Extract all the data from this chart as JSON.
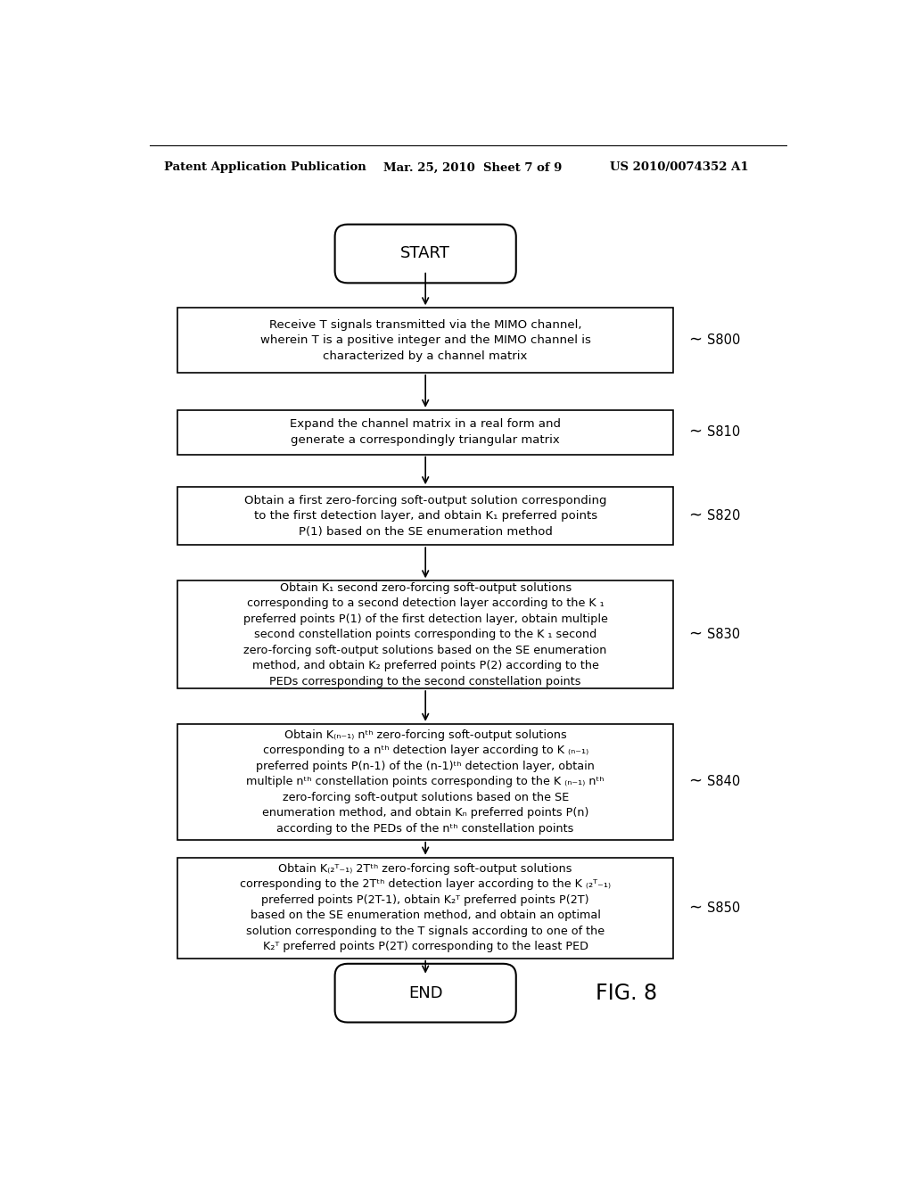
{
  "background_color": "#ffffff",
  "header_left": "Patent Application Publication",
  "header_mid": "Mar. 25, 2010  Sheet 7 of 9",
  "header_right": "US 2010/0074352 A1",
  "fig_label": "FIG. 8",
  "start_label": "START",
  "end_label": "END",
  "font_size_header": 9.5,
  "font_size_label": 10.5
}
